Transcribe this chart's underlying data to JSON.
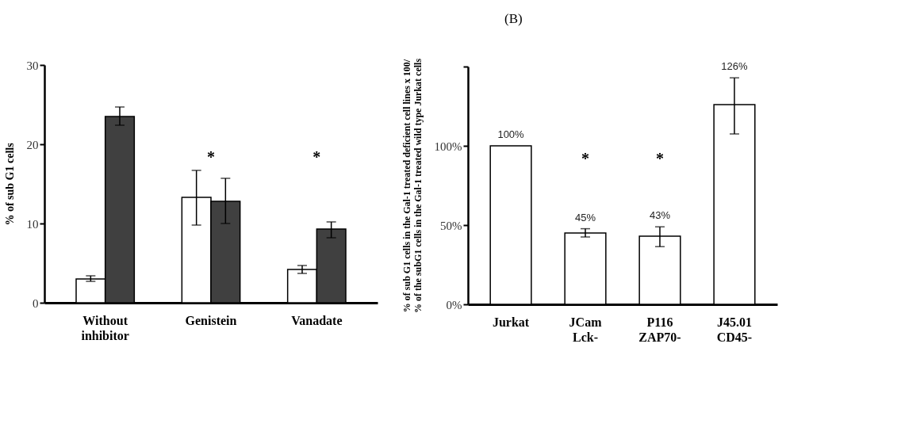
{
  "chart_data": [
    {
      "type": "bar",
      "ylabel": "% of sub G1 cells",
      "categories": [
        "Without\ninhibitor",
        "Genistein",
        "Vanadate"
      ],
      "ylim": [
        0,
        30
      ],
      "yticks": [
        0,
        10,
        20,
        30
      ],
      "series": [
        {
          "color": "#ffffff",
          "values": [
            3.0,
            13.3,
            4.2
          ],
          "errors": [
            [
              2.7,
              3.4
            ],
            [
              9.8,
              16.7
            ],
            [
              3.7,
              4.7
            ]
          ]
        },
        {
          "color": "#404040",
          "values": [
            23.5,
            12.8,
            9.3
          ],
          "errors": [
            [
              22.4,
              24.7
            ],
            [
              10.0,
              15.7
            ],
            [
              8.2,
              10.2
            ]
          ]
        }
      ],
      "annotations": [
        "*",
        "*"
      ]
    },
    {
      "type": "bar",
      "title": "(B)",
      "ylabel": "% of sub G1 cells in the Gal-1 treated deficient cell lines x 100/\n% of the subG1 cells in the Gal-1 treated wild type Jurkat cells",
      "categories": [
        "Jurkat",
        "JCam\nLck-",
        "P116\nZAP70-",
        "J45.01\nCD45-"
      ],
      "ylim": [
        0,
        150
      ],
      "yticks": [
        {
          "value": 0,
          "label": "0%"
        },
        {
          "value": 50,
          "label": "50%"
        },
        {
          "value": 100,
          "label": "100%"
        },
        {
          "value": 150,
          "label": null
        }
      ],
      "series": [
        {
          "color": "#ffffff",
          "values": [
            100,
            45,
            43,
            126
          ],
          "errors": [
            null,
            [
              42.5,
              47.7
            ],
            [
              36.4,
              48.9
            ],
            [
              107.5,
              142.9
            ]
          ],
          "value_labels": [
            "100%",
            "45%",
            "43%",
            "126%"
          ]
        }
      ],
      "annotations": [
        "*",
        "*"
      ]
    }
  ]
}
